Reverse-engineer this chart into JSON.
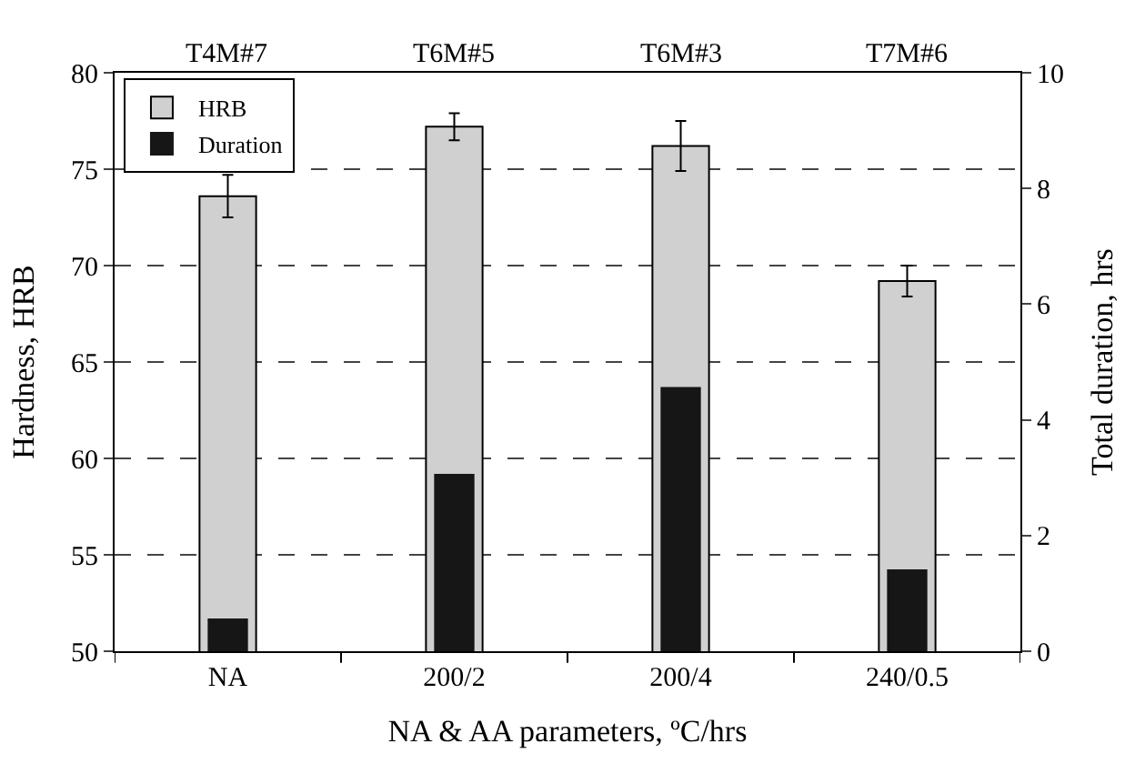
{
  "chart_data": {
    "type": "bar",
    "categories": [
      "NA",
      "200/2",
      "200/4",
      "240/0.5"
    ],
    "series": [
      {
        "name": "HRB",
        "color": "#d0d0d0",
        "values": [
          73.6,
          77.2,
          76.2,
          69.2
        ],
        "errors": [
          1.1,
          0.7,
          1.3,
          0.8
        ]
      },
      {
        "name": "Duration",
        "color": "#161616",
        "values": [
          0.55,
          3.05,
          4.55,
          1.4
        ],
        "axis": "y2"
      }
    ],
    "xlabel": "NA & AA parameters, ºC/hrs",
    "ylabel": "Hardness, HRB",
    "y2label": "Total duration, hrs",
    "ylim": [
      50,
      80
    ],
    "yticks": [
      50,
      55,
      60,
      65,
      70,
      75,
      80
    ],
    "y2lim": [
      0,
      10
    ],
    "y2ticks": [
      0,
      2,
      4,
      6,
      8,
      10
    ],
    "annotations": [
      "T4M#7",
      "T6M#5",
      "T6M#3",
      "T7M#6"
    ],
    "grid": "y",
    "legend": "top left"
  }
}
